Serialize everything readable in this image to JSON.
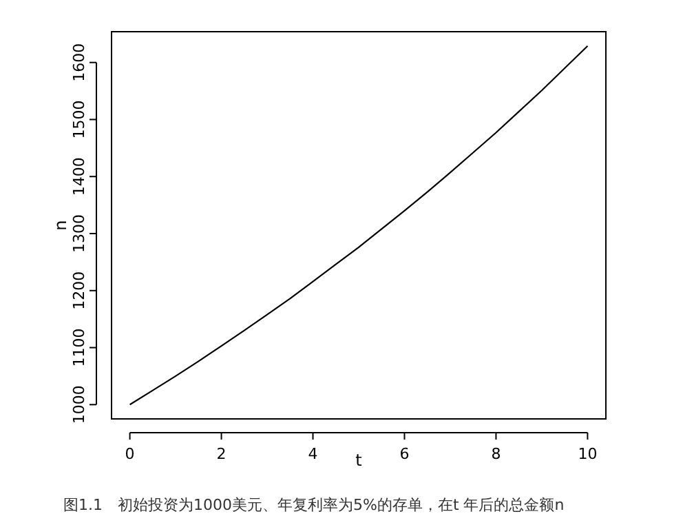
{
  "chart_data": {
    "type": "line",
    "xlabel": "t",
    "ylabel": "n",
    "annotations": [
      "图1.1　初始投资为1000美元、年复利率为5%的存单，在t 年后的总金额n"
    ],
    "x": [
      0,
      0.5,
      1,
      1.5,
      2,
      2.5,
      3,
      3.5,
      4,
      4.5,
      5,
      5.5,
      6,
      6.5,
      7,
      7.5,
      8,
      8.5,
      9,
      9.5,
      10
    ],
    "series": [
      {
        "color": "#000000",
        "values": [
          1000,
          1025,
          1050,
          1076,
          1103,
          1130,
          1158,
          1186,
          1216,
          1246,
          1276,
          1308,
          1340,
          1373,
          1407,
          1442,
          1477,
          1514,
          1551,
          1590,
          1629
        ]
      }
    ],
    "xlim": [
      -0.4,
      10.4
    ],
    "ylim": [
      975,
      1654
    ],
    "xticks": [
      0,
      2,
      4,
      6,
      8,
      10
    ],
    "yticks": [
      1000,
      1100,
      1200,
      1300,
      1400,
      1500,
      1600
    ]
  }
}
